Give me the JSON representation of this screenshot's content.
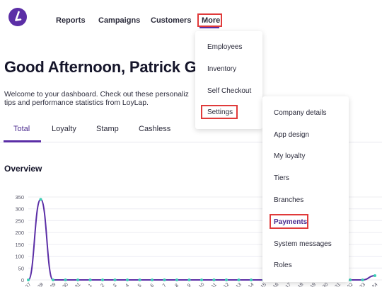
{
  "nav": {
    "items": [
      "Reports",
      "Campaigns",
      "Customers",
      "More"
    ]
  },
  "greeting": "Good Afternoon, Patrick Ga",
  "welcome": {
    "line1": "Welcome to your dashboard. Check out these personaliz",
    "line2": "tips and performance statistics from LoyLap."
  },
  "tabs": [
    "Total",
    "Loyalty",
    "Stamp",
    "Cashless"
  ],
  "overview_title": "Overview",
  "more_menu": [
    "Employees",
    "Inventory",
    "Self Checkout",
    "Settings"
  ],
  "settings_menu": [
    "Company details",
    "App design",
    "My loyalty",
    "Tiers",
    "Branches",
    "Payments",
    "System messages",
    "Roles"
  ],
  "colors": {
    "accent": "#5b2ea6",
    "highlight": "#e03a3a",
    "point": "#3ccfb4"
  },
  "chart_data": {
    "type": "line",
    "yticks": [
      "350",
      "300",
      "250",
      "200",
      "150",
      "100",
      "50",
      "0"
    ],
    "xticks": [
      "27",
      "28",
      "29",
      "30",
      "31",
      "1",
      "2",
      "3",
      "4",
      "5",
      "6",
      "7",
      "8",
      "9",
      "10",
      "11",
      "12",
      "13",
      "14",
      "15",
      "16",
      "17",
      "18",
      "19",
      "20",
      "21",
      "22",
      "23",
      "24"
    ],
    "ylim": [
      0,
      350
    ],
    "series": [
      {
        "values": [
          0,
          340,
          0,
          0,
          0,
          0,
          0,
          0,
          0,
          0,
          0,
          0,
          0,
          0,
          0,
          0,
          0,
          0,
          0,
          0,
          0,
          0,
          0,
          0,
          0,
          0,
          0,
          0,
          18
        ]
      }
    ]
  }
}
